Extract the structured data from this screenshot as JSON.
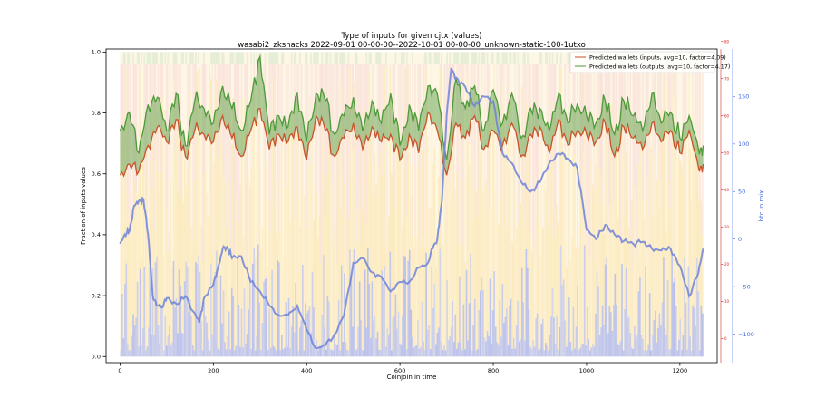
{
  "chart_data": {
    "type": "line",
    "title": "Type of inputs for given cjtx (values)",
    "subtitle": "wasabi2_zksnacks 2022-09-01 00-00-00--2022-10-01 00-00-00_unknown-static-100-1utxo",
    "xlabel": "Coinjoin in time",
    "ylabel": "Fraction of inputs values",
    "y2label": "btc in mix",
    "xlim": [
      -30,
      1280
    ],
    "ylim": [
      -0.02,
      1.01
    ],
    "y3lim": [
      -6.5,
      78
    ],
    "y2lim": [
      -130,
      200
    ],
    "xticks": [
      "0",
      "200",
      "400",
      "600",
      "800",
      "1000",
      "1200"
    ],
    "yticks": [
      "0.0",
      "0.2",
      "0.4",
      "0.6",
      "0.8",
      "1.0"
    ],
    "y3ticks": [
      "0",
      "10",
      "20",
      "30",
      "40",
      "50",
      "60",
      "70",
      "80"
    ],
    "y2ticks": [
      "−100",
      "−50",
      "0",
      "50",
      "100",
      "150"
    ],
    "colors": {
      "inputs": "#c9532a",
      "outputs": "#4e9a3a",
      "fill": "#4e9a3a",
      "btc": "#6d83d8",
      "y3axis": "#d62728",
      "y2axis": "#4169e1",
      "bg_blue": "#aab4ee",
      "bg_yellow": "#fbe7b4",
      "bg_pink": "#f8d6d6",
      "bg_green": "#cfe8c8"
    },
    "legend": {
      "position": "top-right",
      "entries": [
        "Predicted wallets (inputs, avg=10, factor=4.09)",
        "Predicted wallets (outputs, avg=10, factor=4.17)"
      ]
    },
    "series": [
      {
        "name": "Predicted wallets (inputs, avg=10, factor=4.09)",
        "axis": "y3",
        "x": [
          0,
          20,
          40,
          60,
          80,
          100,
          120,
          140,
          160,
          180,
          200,
          220,
          240,
          260,
          280,
          300,
          320,
          340,
          360,
          380,
          400,
          420,
          440,
          460,
          480,
          500,
          520,
          540,
          560,
          580,
          600,
          620,
          640,
          660,
          680,
          700,
          720,
          740,
          760,
          780,
          800,
          820,
          840,
          860,
          880,
          900,
          920,
          940,
          960,
          980,
          1000,
          1020,
          1040,
          1060,
          1080,
          1100,
          1120,
          1140,
          1160,
          1180,
          1200,
          1220,
          1240,
          1250
        ],
        "values": [
          44,
          47,
          45,
          52,
          57,
          53,
          59,
          49,
          56,
          55,
          53,
          60,
          54,
          49,
          56,
          62,
          51,
          55,
          53,
          57,
          48,
          60,
          56,
          49,
          54,
          58,
          51,
          57,
          53,
          55,
          48,
          55,
          50,
          61,
          56,
          44,
          58,
          54,
          60,
          51,
          56,
          52,
          58,
          49,
          55,
          57,
          50,
          59,
          52,
          56,
          55,
          53,
          58,
          49,
          57,
          54,
          51,
          58,
          53,
          56,
          50,
          56,
          46,
          47
        ]
      },
      {
        "name": "Predicted wallets (outputs, avg=10, factor=4.17)",
        "axis": "y3",
        "x": [
          0,
          20,
          40,
          60,
          80,
          100,
          120,
          140,
          160,
          180,
          200,
          220,
          240,
          260,
          280,
          300,
          320,
          340,
          360,
          380,
          400,
          420,
          440,
          460,
          480,
          500,
          520,
          540,
          560,
          580,
          600,
          620,
          640,
          660,
          680,
          700,
          720,
          740,
          760,
          780,
          800,
          820,
          840,
          860,
          880,
          900,
          920,
          940,
          960,
          980,
          1000,
          1020,
          1040,
          1060,
          1080,
          1100,
          1120,
          1140,
          1160,
          1180,
          1200,
          1220,
          1240,
          1250
        ],
        "values": [
          56,
          61,
          50,
          63,
          65,
          56,
          66,
          52,
          64,
          62,
          58,
          68,
          62,
          56,
          64,
          76,
          55,
          60,
          57,
          66,
          53,
          66,
          64,
          55,
          60,
          65,
          56,
          64,
          58,
          66,
          52,
          63,
          56,
          68,
          66,
          48,
          70,
          62,
          68,
          56,
          67,
          58,
          66,
          54,
          62,
          62,
          56,
          66,
          58,
          63,
          60,
          58,
          64,
          55,
          64,
          60,
          56,
          66,
          58,
          61,
          54,
          60,
          51,
          52
        ]
      },
      {
        "name": "",
        "axis": "y2",
        "x": [
          0,
          10,
          20,
          30,
          40,
          50,
          60,
          70,
          80,
          90,
          100,
          120,
          140,
          160,
          170,
          180,
          200,
          210,
          220,
          230,
          240,
          260,
          280,
          300,
          320,
          340,
          360,
          380,
          400,
          420,
          440,
          460,
          480,
          500,
          520,
          540,
          560,
          580,
          600,
          620,
          640,
          660,
          670,
          680,
          690,
          700,
          710,
          720,
          740,
          760,
          780,
          800,
          820,
          840,
          860,
          880,
          900,
          920,
          940,
          960,
          980,
          1000,
          1020,
          1040,
          1060,
          1080,
          1100,
          1120,
          1140,
          1160,
          1180,
          1200,
          1220,
          1240,
          1250
        ],
        "values": [
          -5,
          5,
          8,
          35,
          40,
          42,
          5,
          -60,
          -70,
          -72,
          -62,
          -68,
          -60,
          -78,
          -88,
          -62,
          -48,
          -30,
          -10,
          -8,
          -20,
          -18,
          -45,
          -55,
          -70,
          -80,
          -80,
          -70,
          -95,
          -115,
          -112,
          -100,
          -80,
          -25,
          -20,
          -35,
          -40,
          -55,
          -45,
          -45,
          -30,
          -25,
          -10,
          0,
          40,
          130,
          180,
          170,
          160,
          140,
          150,
          145,
          90,
          80,
          60,
          50,
          60,
          80,
          90,
          85,
          75,
          10,
          0,
          15,
          5,
          -2,
          -5,
          -3,
          -10,
          -12,
          -10,
          -28,
          -60,
          -35,
          -10
        ]
      }
    ]
  }
}
